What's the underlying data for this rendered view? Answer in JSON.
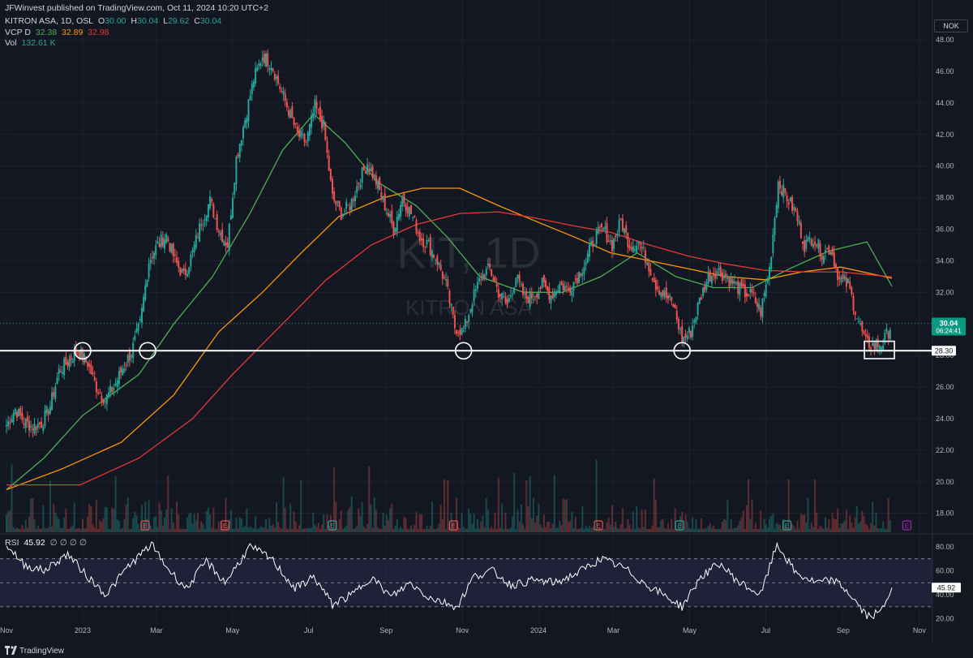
{
  "header": {
    "published": "JFWinvest published on TradingView.com, Oct 11, 2024 10:20 UTC+2",
    "symbol_line": "KITRON ASA, 1D, OSL",
    "ohlc": {
      "o_label": "O",
      "o": "30.00",
      "h_label": "H",
      "h": "30.04",
      "l_label": "L",
      "l": "29.62",
      "c_label": "C",
      "c": "30.04"
    },
    "vcp_label": "VCP D",
    "vcp_values": [
      "32.38",
      "32.89",
      "32.98"
    ],
    "vol_label": "Vol",
    "vol_value": "132.61 K"
  },
  "currency": "NOK",
  "watermark": {
    "big": "KIT, 1D",
    "small": "KITRON ASA"
  },
  "price_tags": {
    "last_price": "30.04",
    "countdown": "06:24:41",
    "line_level": "28.30"
  },
  "rsi_header": {
    "label": "RSI",
    "value": "45.92",
    "placeholders": "∅ ∅ ∅ ∅"
  },
  "footer": {
    "brand": "TradingView"
  },
  "colors": {
    "background": "#131722",
    "grid": "#1e222d",
    "up": "#26a69a",
    "down": "#ef5350",
    "ma_green": "#4caf50",
    "ma_orange": "#ff9800",
    "ma_red": "#e53935",
    "rsi_line": "#ffffff",
    "rsi_band": "#2a2a4a",
    "last_price_tag": "#089981",
    "earnings_marker": "#ef5350",
    "earnings_marker_alt": "#26a69a",
    "dividend_marker": "#9c27b0"
  },
  "chart_data": [
    {
      "type": "candlestick",
      "title": "KITRON ASA, 1D, OSL",
      "ylim": [
        16.8,
        49.6
      ],
      "y_ticks": [
        18.0,
        20.0,
        22.0,
        24.0,
        26.0,
        28.0,
        30.0,
        32.0,
        34.0,
        36.0,
        38.0,
        40.0,
        42.0,
        44.0,
        46.0,
        48.0
      ],
      "y_tick_labels": [
        "18.00",
        "20.00",
        "22.00",
        "24.00",
        "26.00",
        "28.00",
        "30.00",
        "32.00",
        "34.00",
        "36.00",
        "38.00",
        "40.00",
        "42.00",
        "44.00",
        "46.00",
        "48.00"
      ],
      "x_ticks": [
        "Nov",
        "2023",
        "Mar",
        "May",
        "Jul",
        "Sep",
        "Nov",
        "2024",
        "Mar",
        "May",
        "Jul",
        "Sep",
        "Nov"
      ],
      "x_tick_dates": [
        "2022-11-01",
        "2023-01-01",
        "2023-03-01",
        "2023-05-01",
        "2023-07-01",
        "2023-09-01",
        "2023-11-01",
        "2024-01-01",
        "2024-03-01",
        "2024-05-01",
        "2024-07-01",
        "2024-09-01",
        "2024-11-01"
      ],
      "xlim": [
        "2022-11-01",
        "2024-11-05"
      ],
      "close_path": [
        [
          "2022-11-01",
          23.6
        ],
        [
          "2022-11-08",
          24.6
        ],
        [
          "2022-11-15",
          23.8
        ],
        [
          "2022-11-22",
          23.5
        ],
        [
          "2022-11-29",
          23.7
        ],
        [
          "2022-12-06",
          24.8
        ],
        [
          "2022-12-13",
          27.0
        ],
        [
          "2022-12-20",
          27.6
        ],
        [
          "2022-12-28",
          28.3
        ],
        [
          "2023-01-05",
          27.5
        ],
        [
          "2023-01-12",
          26.0
        ],
        [
          "2023-01-19",
          25.2
        ],
        [
          "2023-01-26",
          26.0
        ],
        [
          "2023-02-02",
          27.2
        ],
        [
          "2023-02-09",
          28.2
        ],
        [
          "2023-02-16",
          30.0
        ],
        [
          "2023-02-23",
          34.0
        ],
        [
          "2023-03-02",
          35.0
        ],
        [
          "2023-03-09",
          35.6
        ],
        [
          "2023-03-16",
          34.0
        ],
        [
          "2023-03-23",
          33.0
        ],
        [
          "2023-03-30",
          34.5
        ],
        [
          "2023-04-06",
          36.5
        ],
        [
          "2023-04-13",
          37.8
        ],
        [
          "2023-04-20",
          36.0
        ],
        [
          "2023-04-27",
          35.0
        ],
        [
          "2023-05-04",
          40.5
        ],
        [
          "2023-05-11",
          43.0
        ],
        [
          "2023-05-18",
          45.5
        ],
        [
          "2023-05-25",
          47.0
        ],
        [
          "2023-06-01",
          46.5
        ],
        [
          "2023-06-08",
          45.0
        ],
        [
          "2023-06-15",
          43.5
        ],
        [
          "2023-06-22",
          42.0
        ],
        [
          "2023-06-29",
          41.5
        ],
        [
          "2023-07-06",
          43.8
        ],
        [
          "2023-07-13",
          42.5
        ],
        [
          "2023-07-20",
          38.0
        ],
        [
          "2023-07-27",
          37.0
        ],
        [
          "2023-08-03",
          37.5
        ],
        [
          "2023-08-10",
          39.0
        ],
        [
          "2023-08-17",
          40.2
        ],
        [
          "2023-08-24",
          39.0
        ],
        [
          "2023-08-31",
          37.5
        ],
        [
          "2023-09-07",
          36.0
        ],
        [
          "2023-09-14",
          38.0
        ],
        [
          "2023-09-21",
          37.0
        ],
        [
          "2023-09-28",
          35.5
        ],
        [
          "2023-10-05",
          35.0
        ],
        [
          "2023-10-12",
          34.0
        ],
        [
          "2023-10-19",
          32.5
        ],
        [
          "2023-10-26",
          29.8
        ],
        [
          "2023-11-02",
          29.5
        ],
        [
          "2023-11-09",
          31.5
        ],
        [
          "2023-11-16",
          33.0
        ],
        [
          "2023-11-23",
          33.5
        ],
        [
          "2023-11-30",
          32.0
        ],
        [
          "2023-12-07",
          31.2
        ],
        [
          "2023-12-14",
          33.0
        ],
        [
          "2023-12-21",
          31.6
        ],
        [
          "2023-12-28",
          31.8
        ],
        [
          "2024-01-04",
          32.5
        ],
        [
          "2024-01-11",
          31.8
        ],
        [
          "2024-01-18",
          32.5
        ],
        [
          "2024-01-25",
          32.2
        ],
        [
          "2024-02-01",
          33.0
        ],
        [
          "2024-02-08",
          34.0
        ],
        [
          "2024-02-15",
          35.5
        ],
        [
          "2024-02-22",
          36.0
        ],
        [
          "2024-02-29",
          35.0
        ],
        [
          "2024-03-07",
          36.5
        ],
        [
          "2024-03-14",
          35.0
        ],
        [
          "2024-03-21",
          35.2
        ],
        [
          "2024-03-28",
          34.0
        ],
        [
          "2024-04-04",
          32.5
        ],
        [
          "2024-04-11",
          31.8
        ],
        [
          "2024-04-18",
          31.2
        ],
        [
          "2024-04-25",
          29.0
        ],
        [
          "2024-05-02",
          29.5
        ],
        [
          "2024-05-09",
          31.5
        ],
        [
          "2024-05-16",
          33.0
        ],
        [
          "2024-05-23",
          33.4
        ],
        [
          "2024-05-30",
          33.0
        ],
        [
          "2024-06-06",
          32.5
        ],
        [
          "2024-06-13",
          32.0
        ],
        [
          "2024-06-20",
          31.8
        ],
        [
          "2024-06-27",
          30.8
        ],
        [
          "2024-07-04",
          33.5
        ],
        [
          "2024-07-11",
          39.0
        ],
        [
          "2024-07-18",
          38.0
        ],
        [
          "2024-07-25",
          37.0
        ],
        [
          "2024-08-01",
          35.0
        ],
        [
          "2024-08-08",
          35.5
        ],
        [
          "2024-08-15",
          34.5
        ],
        [
          "2024-08-22",
          34.8
        ],
        [
          "2024-08-29",
          32.8
        ],
        [
          "2024-09-05",
          32.5
        ],
        [
          "2024-09-12",
          30.5
        ],
        [
          "2024-09-19",
          28.8
        ],
        [
          "2024-09-26",
          28.6
        ],
        [
          "2024-10-03",
          28.8
        ],
        [
          "2024-10-10",
          30.04
        ]
      ],
      "moving_averages": [
        {
          "name": "VCP D",
          "color": "#4caf50",
          "value": 32.38,
          "points": [
            [
              "2022-11-01",
              19.5
            ],
            [
              "2022-12-01",
              21.5
            ],
            [
              "2023-01-01",
              24.2
            ],
            [
              "2023-02-15",
              26.8
            ],
            [
              "2023-03-15",
              30.0
            ],
            [
              "2023-04-15",
              33.0
            ],
            [
              "2023-05-15",
              37.0
            ],
            [
              "2023-06-10",
              41.0
            ],
            [
              "2023-07-05",
              43.3
            ],
            [
              "2023-07-30",
              41.5
            ],
            [
              "2023-08-25",
              39.0
            ],
            [
              "2023-09-25",
              37.5
            ],
            [
              "2023-10-20",
              35.5
            ],
            [
              "2023-11-15",
              33.0
            ],
            [
              "2023-12-20",
              32.0
            ],
            [
              "2024-01-20",
              32.0
            ],
            [
              "2024-02-20",
              33.0
            ],
            [
              "2024-03-20",
              34.5
            ],
            [
              "2024-04-20",
              33.0
            ],
            [
              "2024-05-20",
              32.3
            ],
            [
              "2024-06-20",
              32.3
            ],
            [
              "2024-07-20",
              33.5
            ],
            [
              "2024-08-20",
              34.6
            ],
            [
              "2024-09-20",
              35.2
            ],
            [
              "2024-10-10",
              32.38
            ]
          ]
        },
        {
          "name": "VCP D",
          "color": "#ff9800",
          "value": 32.89,
          "points": [
            [
              "2022-11-01",
              19.5
            ],
            [
              "2022-12-15",
              20.8
            ],
            [
              "2023-02-01",
              22.5
            ],
            [
              "2023-03-15",
              25.5
            ],
            [
              "2023-04-20",
              29.5
            ],
            [
              "2023-05-25",
              32.0
            ],
            [
              "2023-06-25",
              34.5
            ],
            [
              "2023-07-25",
              36.8
            ],
            [
              "2023-08-30",
              38.0
            ],
            [
              "2023-09-30",
              38.6
            ],
            [
              "2023-10-30",
              38.6
            ],
            [
              "2023-11-30",
              37.5
            ],
            [
              "2023-12-30",
              36.5
            ],
            [
              "2024-01-30",
              35.5
            ],
            [
              "2024-02-28",
              34.5
            ],
            [
              "2024-03-30",
              34.0
            ],
            [
              "2024-04-30",
              33.5
            ],
            [
              "2024-05-30",
              33.0
            ],
            [
              "2024-06-30",
              32.8
            ],
            [
              "2024-07-30",
              33.3
            ],
            [
              "2024-08-30",
              33.6
            ],
            [
              "2024-10-10",
              32.89
            ]
          ]
        },
        {
          "name": "VCP D",
          "color": "#e53935",
          "value": 32.98,
          "points": [
            [
              "2022-11-01",
              19.8
            ],
            [
              "2022-12-30",
              19.8
            ],
            [
              "2023-02-15",
              21.5
            ],
            [
              "2023-03-30",
              24.0
            ],
            [
              "2023-05-01",
              26.8
            ],
            [
              "2023-06-10",
              30.0
            ],
            [
              "2023-07-15",
              32.8
            ],
            [
              "2023-08-20",
              35.0
            ],
            [
              "2023-09-25",
              36.3
            ],
            [
              "2023-10-30",
              37.0
            ],
            [
              "2023-11-30",
              37.1
            ],
            [
              "2023-12-30",
              36.7
            ],
            [
              "2024-01-30",
              36.2
            ],
            [
              "2024-02-28",
              35.8
            ],
            [
              "2024-03-30",
              35.0
            ],
            [
              "2024-04-30",
              34.3
            ],
            [
              "2024-05-30",
              33.8
            ],
            [
              "2024-06-30",
              33.4
            ],
            [
              "2024-07-30",
              33.3
            ],
            [
              "2024-08-30",
              33.3
            ],
            [
              "2024-10-10",
              32.98
            ]
          ]
        }
      ],
      "horizontal_line": {
        "value": 28.3,
        "label": "28.30"
      },
      "last_price": 30.04,
      "circle_annotations": [
        [
          "2023-01-01",
          28.3
        ],
        [
          "2023-02-22",
          28.3
        ],
        [
          "2023-11-02",
          28.3
        ],
        [
          "2024-04-25",
          28.3
        ]
      ],
      "box_annotation": {
        "x0": "2024-09-18",
        "x1": "2024-10-12",
        "y0": 27.8,
        "y1": 28.9
      },
      "event_markers": [
        {
          "date": "2023-02-20",
          "kind": "E",
          "color": "#ef5350"
        },
        {
          "date": "2023-04-25",
          "kind": "E",
          "color": "#ef5350"
        },
        {
          "date": "2023-07-20",
          "kind": "E",
          "color": "#26a69a"
        },
        {
          "date": "2023-10-25",
          "kind": "E",
          "color": "#ef5350"
        },
        {
          "date": "2024-02-18",
          "kind": "E",
          "color": "#ef5350"
        },
        {
          "date": "2024-04-23",
          "kind": "E",
          "color": "#26a69a"
        },
        {
          "date": "2024-07-18",
          "kind": "E",
          "color": "#26a69a"
        },
        {
          "date": "2024-10-22",
          "kind": "E",
          "color": "#9c27b0"
        }
      ]
    },
    {
      "type": "line",
      "title": "RSI",
      "ylim": [
        15,
        88
      ],
      "y_ticks": [
        20,
        40,
        60,
        80
      ],
      "y_tick_labels": [
        "20.00",
        "40.00",
        "60.00",
        "80.00"
      ],
      "bands": [
        30,
        50,
        70
      ],
      "value": 45.92,
      "points": [
        [
          "2022-11-01",
          82
        ],
        [
          "2022-11-15",
          65
        ],
        [
          "2022-12-01",
          60
        ],
        [
          "2022-12-20",
          74
        ],
        [
          "2023-01-05",
          55
        ],
        [
          "2023-01-20",
          40
        ],
        [
          "2023-02-05",
          62
        ],
        [
          "2023-02-25",
          82
        ],
        [
          "2023-03-10",
          62
        ],
        [
          "2023-03-25",
          45
        ],
        [
          "2023-04-10",
          68
        ],
        [
          "2023-04-25",
          50
        ],
        [
          "2023-05-15",
          80
        ],
        [
          "2023-06-01",
          70
        ],
        [
          "2023-06-20",
          45
        ],
        [
          "2023-07-05",
          55
        ],
        [
          "2023-07-20",
          32
        ],
        [
          "2023-08-05",
          40
        ],
        [
          "2023-08-20",
          55
        ],
        [
          "2023-09-05",
          38
        ],
        [
          "2023-09-20",
          50
        ],
        [
          "2023-10-05",
          38
        ],
        [
          "2023-10-28",
          30
        ],
        [
          "2023-11-10",
          55
        ],
        [
          "2023-11-25",
          60
        ],
        [
          "2023-12-10",
          48
        ],
        [
          "2023-12-28",
          52
        ],
        [
          "2024-01-15",
          50
        ],
        [
          "2024-02-01",
          58
        ],
        [
          "2024-02-20",
          70
        ],
        [
          "2024-03-10",
          62
        ],
        [
          "2024-03-25",
          50
        ],
        [
          "2024-04-10",
          40
        ],
        [
          "2024-04-25",
          30
        ],
        [
          "2024-05-10",
          55
        ],
        [
          "2024-05-25",
          66
        ],
        [
          "2024-06-10",
          50
        ],
        [
          "2024-06-27",
          40
        ],
        [
          "2024-07-10",
          82
        ],
        [
          "2024-07-25",
          58
        ],
        [
          "2024-08-10",
          50
        ],
        [
          "2024-08-25",
          52
        ],
        [
          "2024-09-05",
          42
        ],
        [
          "2024-09-20",
          22
        ],
        [
          "2024-10-01",
          25
        ],
        [
          "2024-10-10",
          45.9
        ]
      ]
    }
  ]
}
